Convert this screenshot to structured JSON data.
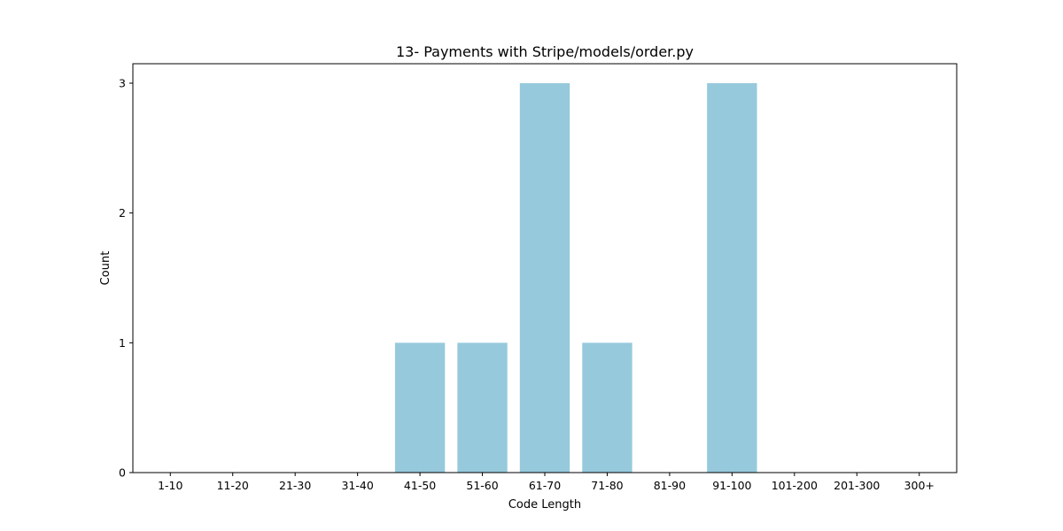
{
  "chart_data": {
    "type": "bar",
    "title": "13- Payments with Stripe/models/order.py",
    "xlabel": "Code Length",
    "ylabel": "Count",
    "categories": [
      "1-10",
      "11-20",
      "21-30",
      "31-40",
      "41-50",
      "51-60",
      "61-70",
      "71-80",
      "81-90",
      "91-100",
      "101-200",
      "201-300",
      "300+"
    ],
    "values": [
      0,
      0,
      0,
      0,
      1,
      1,
      3,
      1,
      0,
      3,
      0,
      0,
      0
    ],
    "ylim": [
      0,
      3.15
    ],
    "yticks": [
      0,
      1,
      2,
      3
    ],
    "bar_color": "#96c9dc",
    "grid": false,
    "legend": "none"
  }
}
